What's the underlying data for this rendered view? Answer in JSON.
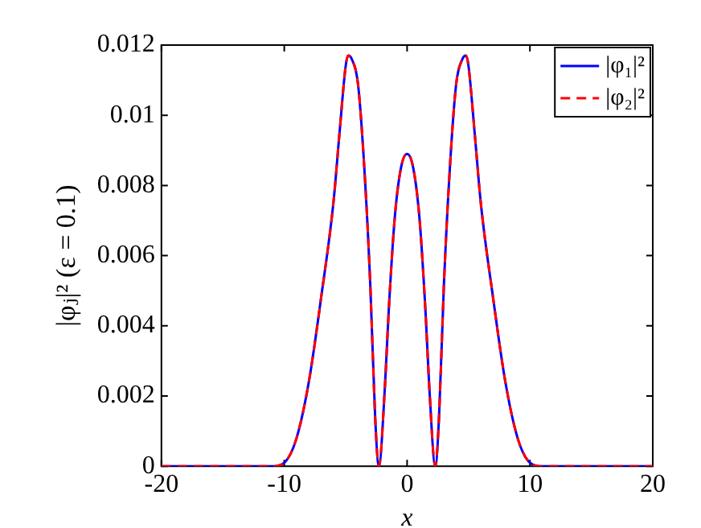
{
  "chart_data": {
    "type": "line",
    "xlabel": "x",
    "ylabel": "|φⱼ|² (ε = 0.1)",
    "xlim": [
      -20,
      20
    ],
    "xticks": [
      -20,
      -10,
      0,
      10,
      20
    ],
    "ylim": [
      0,
      0.012
    ],
    "yticks": [
      0,
      0.002,
      0.004,
      0.006,
      0.008,
      0.01,
      0.012
    ],
    "grid": false,
    "legend": "top right",
    "marker": "none",
    "x": [
      -20,
      -16,
      -13,
      -12,
      -11,
      -10,
      -9,
      -8,
      -7,
      -6,
      -5.5,
      -5,
      -4.8,
      -4.5,
      -4,
      -3.5,
      -3,
      -2.6,
      -2.3,
      -1.8,
      -1.5,
      -1,
      -0.5,
      0,
      0.5,
      1,
      1.5,
      1.8,
      2.3,
      2.6,
      3,
      3.5,
      4,
      4.5,
      4.8,
      5,
      5.5,
      6,
      7,
      8,
      9,
      10,
      11,
      12,
      13,
      16,
      20
    ],
    "series": [
      {
        "name": "|φ₁|²",
        "color": "#0000ff",
        "line_style": "solid",
        "values": [
          0,
          0,
          0,
          0,
          0,
          0.0001,
          0.0008,
          0.0024,
          0.0048,
          0.0075,
          0.0095,
          0.0114,
          0.0117,
          0.0116,
          0.0109,
          0.0086,
          0.0052,
          0.0014,
          0,
          0.0023,
          0.0044,
          0.0071,
          0.0085,
          0.0089,
          0.0085,
          0.0071,
          0.0044,
          0.0023,
          0,
          0.0014,
          0.0052,
          0.0086,
          0.0109,
          0.0116,
          0.0117,
          0.0114,
          0.0095,
          0.0075,
          0.0048,
          0.0024,
          0.0008,
          0.0001,
          0,
          0,
          0,
          0,
          0
        ]
      },
      {
        "name": "|φ₂|²",
        "color": "#ff0000",
        "line_style": "dashed",
        "values": [
          0,
          0,
          0,
          0,
          0,
          0.0001,
          0.0008,
          0.0024,
          0.0048,
          0.0075,
          0.0095,
          0.0114,
          0.0117,
          0.0116,
          0.0109,
          0.0086,
          0.0052,
          0.0014,
          0,
          0.0023,
          0.0044,
          0.0071,
          0.0085,
          0.0089,
          0.0085,
          0.0071,
          0.0044,
          0.0023,
          0,
          0.0014,
          0.0052,
          0.0086,
          0.0109,
          0.0116,
          0.0117,
          0.0114,
          0.0095,
          0.0075,
          0.0048,
          0.0024,
          0.0008,
          0.0001,
          0,
          0,
          0,
          0,
          0
        ]
      }
    ]
  }
}
